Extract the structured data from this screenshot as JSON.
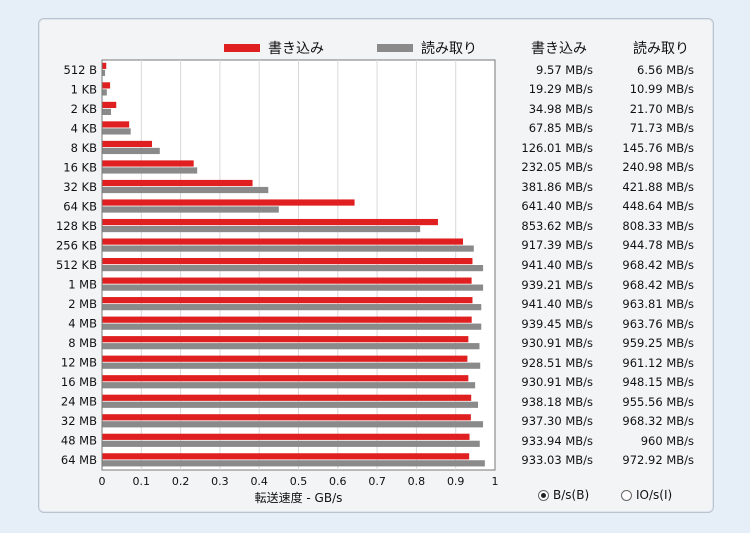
{
  "legend": {
    "write": "書き込み",
    "read": "読み取り"
  },
  "columns": {
    "write": "書き込み",
    "read": "読み取り"
  },
  "radio": {
    "bytes": "B/s(B)",
    "io": "IO/s(I)",
    "selected": "bytes"
  },
  "colors": {
    "write": "#e02020",
    "read": "#8a8a8a"
  },
  "chart_data": {
    "type": "bar",
    "orientation": "horizontal",
    "xlabel": "転送速度 - GB/s",
    "xlim": [
      0,
      1
    ],
    "xticks": [
      "0",
      "0.1",
      "0.2",
      "0.3",
      "0.4",
      "0.5",
      "0.6",
      "0.7",
      "0.8",
      "0.9",
      "1"
    ],
    "grid": true,
    "legend_position": "top",
    "categories": [
      "512 B",
      "1 KB",
      "2 KB",
      "4 KB",
      "8 KB",
      "16 KB",
      "32 KB",
      "64 KB",
      "128 KB",
      "256 KB",
      "512 KB",
      "1 MB",
      "2 MB",
      "4 MB",
      "8 MB",
      "12 MB",
      "16 MB",
      "24 MB",
      "32 MB",
      "48 MB",
      "64 MB"
    ],
    "series": [
      {
        "name": "書き込み",
        "values": [
          0.00957,
          0.01929,
          0.03498,
          0.06785,
          0.12601,
          0.23205,
          0.38186,
          0.6414,
          0.85362,
          0.91739,
          0.9414,
          0.93921,
          0.9414,
          0.93945,
          0.93091,
          0.92851,
          0.93091,
          0.93818,
          0.9373,
          0.93394,
          0.93303
        ],
        "labels": [
          "9.57 MB/s",
          "19.29 MB/s",
          "34.98 MB/s",
          "67.85 MB/s",
          "126.01 MB/s",
          "232.05 MB/s",
          "381.86 MB/s",
          "641.40 MB/s",
          "853.62 MB/s",
          "917.39 MB/s",
          "941.40 MB/s",
          "939.21 MB/s",
          "941.40 MB/s",
          "939.45 MB/s",
          "930.91 MB/s",
          "928.51 MB/s",
          "930.91 MB/s",
          "938.18 MB/s",
          "937.30 MB/s",
          "933.94 MB/s",
          "933.03 MB/s"
        ]
      },
      {
        "name": "読み取り",
        "values": [
          0.00656,
          0.01099,
          0.0217,
          0.07173,
          0.14576,
          0.24098,
          0.42188,
          0.44864,
          0.80833,
          0.94478,
          0.96842,
          0.96842,
          0.96381,
          0.96376,
          0.95925,
          0.96112,
          0.94815,
          0.95556,
          0.96832,
          0.96,
          0.97292
        ],
        "labels": [
          "6.56 MB/s",
          "10.99 MB/s",
          "21.70 MB/s",
          "71.73 MB/s",
          "145.76 MB/s",
          "240.98 MB/s",
          "421.88 MB/s",
          "448.64 MB/s",
          "808.33 MB/s",
          "944.78 MB/s",
          "968.42 MB/s",
          "968.42 MB/s",
          "963.81 MB/s",
          "963.76 MB/s",
          "959.25 MB/s",
          "961.12 MB/s",
          "948.15 MB/s",
          "955.56 MB/s",
          "968.32 MB/s",
          "960 MB/s",
          "972.92 MB/s"
        ]
      }
    ]
  }
}
